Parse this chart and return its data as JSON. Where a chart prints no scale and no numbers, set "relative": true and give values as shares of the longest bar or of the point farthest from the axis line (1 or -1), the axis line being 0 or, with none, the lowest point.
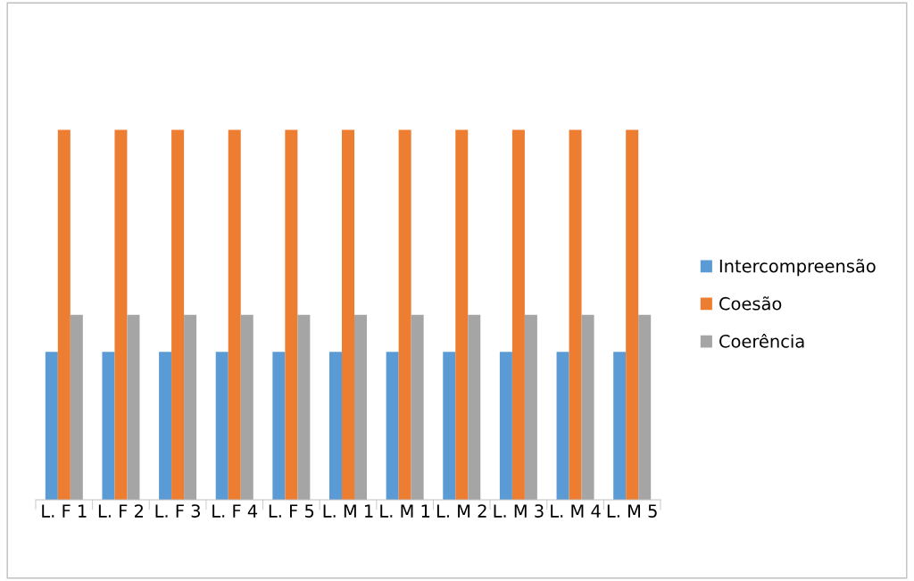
{
  "chart_data": {
    "type": "bar",
    "relative": true,
    "categories": [
      "L. F 1",
      "L. F 2",
      "L. F 3",
      "L. F 4",
      "L. F 5",
      "L. M 1",
      "L. M 1",
      "L. M 2",
      "L. M 3",
      "L. M 4",
      "L. M 5"
    ],
    "series": [
      {
        "name": "Intercompreensão",
        "color": "#5b9bd5",
        "values": [
          0.4,
          0.4,
          0.4,
          0.4,
          0.4,
          0.4,
          0.4,
          0.4,
          0.4,
          0.4,
          0.4
        ]
      },
      {
        "name": "Coesão",
        "color": "#ed7d31",
        "values": [
          1,
          1,
          1,
          1,
          1,
          1,
          1,
          1,
          1,
          1,
          1
        ]
      },
      {
        "name": "Coerência",
        "color": "#a5a5a5",
        "values": [
          0.5,
          0.5,
          0.5,
          0.5,
          0.5,
          0.5,
          0.5,
          0.5,
          0.5,
          0.5,
          0.5
        ]
      }
    ],
    "legend": "right",
    "grid": false
  }
}
